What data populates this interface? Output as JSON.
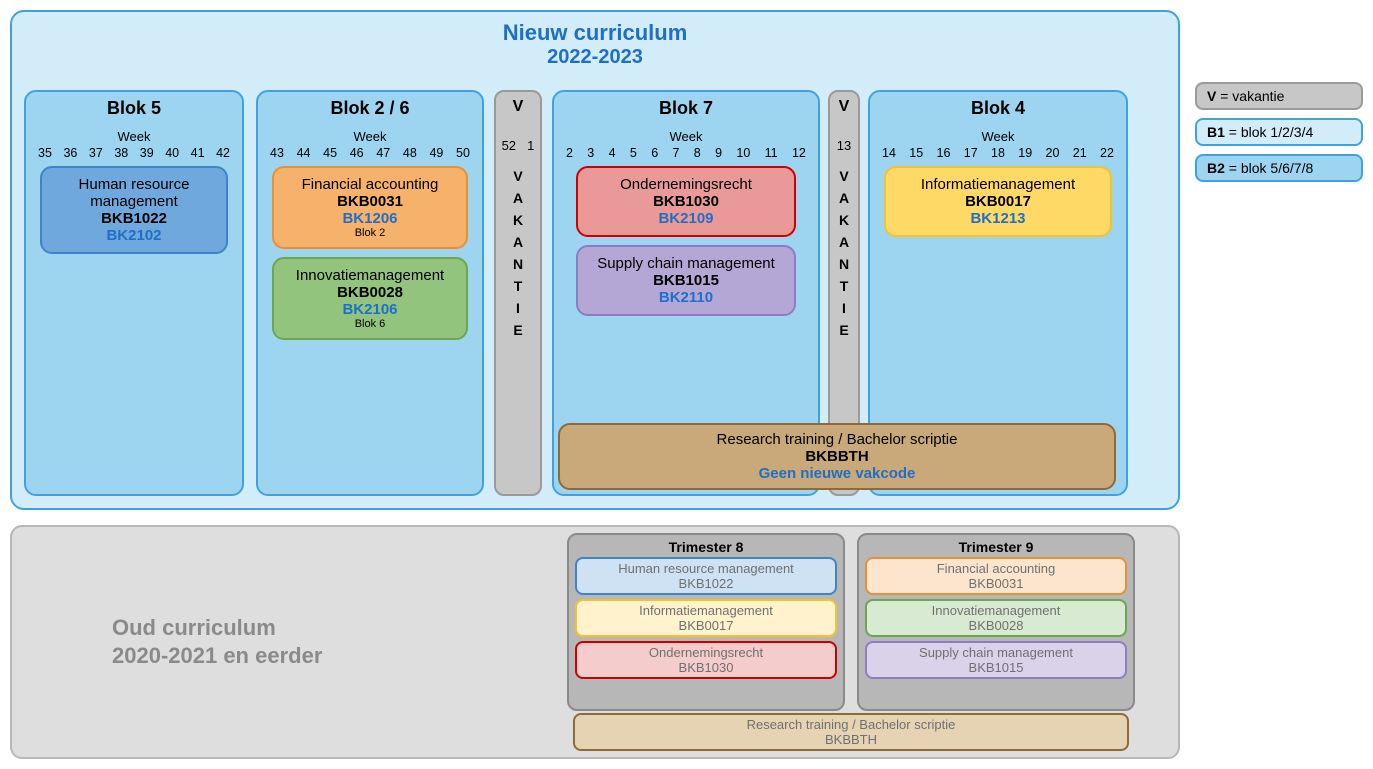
{
  "new": {
    "title": "Nieuw curriculum",
    "subtitle": "2022-2023"
  },
  "blok5": {
    "title": "Blok 5",
    "week_label": "Week",
    "weeks": [
      "35",
      "36",
      "37",
      "38",
      "39",
      "40",
      "41",
      "42"
    ],
    "course": {
      "name": "Human resource management",
      "code": "BKB1022",
      "new": "BK2102",
      "bg": "#6fa8dc",
      "border": "#3d85c6"
    }
  },
  "blok26": {
    "title": "Blok 2 / 6",
    "week_label": "Week",
    "weeks": [
      "43",
      "44",
      "45",
      "46",
      "47",
      "48",
      "49",
      "50"
    ],
    "c1": {
      "name": "Financial accounting",
      "code": "BKB0031",
      "new": "BK1206",
      "sub": "Blok 2",
      "bg": "#f6b26b",
      "border": "#e69138"
    },
    "c2": {
      "name": "Innovatiemanagement",
      "code": "BKB0028",
      "new": "BK2106",
      "sub": "Blok 6",
      "bg": "#93c47d",
      "border": "#6aa84f"
    }
  },
  "vak1": {
    "letter": "V",
    "nums": [
      "52",
      "1"
    ],
    "word": [
      "V",
      "A",
      "K",
      "A",
      "N",
      "T",
      "I",
      "E"
    ]
  },
  "blok7": {
    "title": "Blok 7",
    "week_label": "Week",
    "weeks": [
      "2",
      "3",
      "4",
      "5",
      "6",
      "7",
      "8",
      "9",
      "10",
      "11",
      "12"
    ],
    "c1": {
      "name": "Ondernemingsrecht",
      "code": "BKB1030",
      "new": "BK2109",
      "bg": "#e06666",
      "border": "#cc0000",
      "bg2": "#ea9999"
    },
    "c2": {
      "name": "Supply chain management",
      "code": "BKB1015",
      "new": "BK2110",
      "bg": "#b4a7d6",
      "border": "#8e7cc3"
    }
  },
  "vak2": {
    "letter": "V",
    "nums": [
      "13"
    ],
    "word": [
      "V",
      "A",
      "K",
      "A",
      "N",
      "T",
      "I",
      "E"
    ]
  },
  "blok4": {
    "title": "Blok 4",
    "week_label": "Week",
    "weeks": [
      "14",
      "15",
      "16",
      "17",
      "18",
      "19",
      "20",
      "21",
      "22"
    ],
    "course": {
      "name": "Informatiemanagement",
      "code": "BKB0017",
      "new": "BK1213",
      "bg": "#ffd966",
      "border": "#f1c232"
    }
  },
  "research": {
    "name": "Research training / Bachelor scriptie",
    "code": "BKBBTH",
    "new": "Geen nieuwe vakcode",
    "bg": "#b98f57",
    "border": "#8e6a3a",
    "bg2": "#c9a879"
  },
  "legend": {
    "v": {
      "b": "V",
      "text": " = vakantie",
      "bg": "#c7c7c7",
      "border": "#9a9a9a"
    },
    "b1": {
      "b": "B1",
      "text": " = blok 1/2/3/4",
      "bg": "#d3ecfa",
      "border": "#3fa2e0"
    },
    "b2": {
      "b": "B2",
      "text": " = blok 5/6/7/8",
      "bg": "#9dd4ef",
      "border": "#3fa2e0"
    }
  },
  "old": {
    "title": "Oud curriculum",
    "subtitle": "2020-2021 en eerder",
    "t8": {
      "title": "Trimester 8",
      "c1": {
        "name": "Human resource management",
        "code": "BKB1022",
        "bg": "#cfe2f3",
        "border": "#3d85c6"
      },
      "c2": {
        "name": "Informatiemanagement",
        "code": "BKB0017",
        "bg": "#fff2cc",
        "border": "#f1c232"
      },
      "c3": {
        "name": "Ondernemingsrecht",
        "code": "BKB1030",
        "bg": "#f4cccc",
        "border": "#cc0000"
      }
    },
    "t9": {
      "title": "Trimester 9",
      "c1": {
        "name": "Financial accounting",
        "code": "BKB0031",
        "bg": "#fce5cd",
        "border": "#e69138"
      },
      "c2": {
        "name": "Innovatiemanagement",
        "code": "BKB0028",
        "bg": "#d9ead3",
        "border": "#6aa84f"
      },
      "c3": {
        "name": "Supply chain management",
        "code": "BKB1015",
        "bg": "#d9d2e9",
        "border": "#8e7cc3"
      }
    },
    "research": {
      "name": "Research training / Bachelor scriptie",
      "code": "BKBBTH",
      "bg": "#e6d3b3",
      "border": "#8e6a3a"
    }
  }
}
